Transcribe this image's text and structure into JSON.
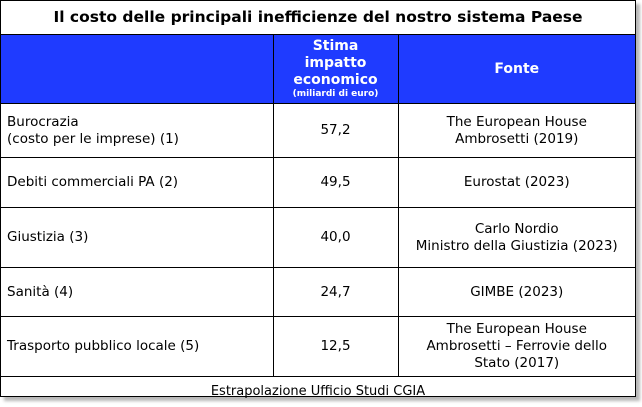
{
  "title": "Il costo delle principali inefficienze del nostro sistema Paese",
  "header": {
    "col1": "",
    "col2_line1": "Stima",
    "col2_line2": "impatto",
    "col2_line3": "economico",
    "col2_sub": "(miliardi di euro)",
    "col3": "Fonte"
  },
  "rows": [
    {
      "name_l1": "Burocrazia",
      "name_l2": "(costo per le imprese) (1)",
      "value": "57,2",
      "src_l1": "The European House",
      "src_l2": "Ambrosetti (2019)",
      "src_l3": ""
    },
    {
      "name_l1": "Debiti commerciali PA (2)",
      "name_l2": "",
      "value": "49,5",
      "src_l1": "Eurostat (2023)",
      "src_l2": "",
      "src_l3": ""
    },
    {
      "name_l1": "Giustizia (3)",
      "name_l2": "",
      "value": "40,0",
      "src_l1": "Carlo Nordio",
      "src_l2": "Ministro della Giustizia (2023)",
      "src_l3": ""
    },
    {
      "name_l1": "Sanità (4)",
      "name_l2": "",
      "value": "24,7",
      "src_l1": "GIMBE (2023)",
      "src_l2": "",
      "src_l3": ""
    },
    {
      "name_l1": "Trasporto pubblico locale (5)",
      "name_l2": "",
      "value": "12,5",
      "src_l1": "The European House",
      "src_l2": "Ambrosetti – Ferrovie dello",
      "src_l3": "Stato (2017)"
    }
  ],
  "footer": "Estrapolazione Ufficio Studi CGIA",
  "colors": {
    "header_bg": "#1f3bff",
    "header_text": "#ffffff"
  }
}
